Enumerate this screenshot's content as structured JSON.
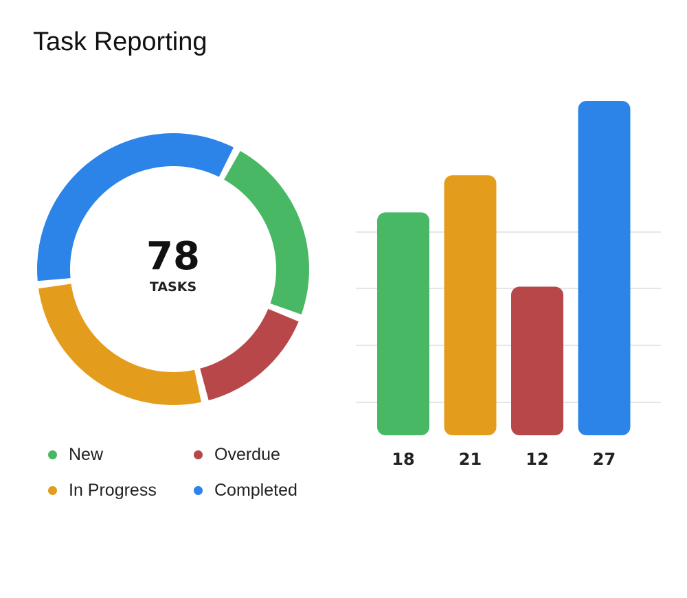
{
  "header": {
    "title": "Task Reporting"
  },
  "donut": {
    "total_value": "78",
    "total_label": "TASKS"
  },
  "colors": {
    "new": "#48b864",
    "in_progress": "#e49c1c",
    "overdue": "#b8474a",
    "completed": "#2d84e8",
    "grid": "#e6e6e6"
  },
  "chart_data": [
    {
      "type": "pie",
      "variant": "donut",
      "center_text": [
        "78",
        "TASKS"
      ],
      "slices": [
        {
          "label": "New",
          "value": 18,
          "color": "#48b864"
        },
        {
          "label": "Overdue",
          "value": 12,
          "color": "#b8474a"
        },
        {
          "label": "In Progress",
          "value": 21,
          "color": "#e49c1c"
        },
        {
          "label": "Completed",
          "value": 27,
          "color": "#2d84e8"
        }
      ],
      "legend": "bottom"
    },
    {
      "type": "bar",
      "categories": [
        "New",
        "In Progress",
        "Overdue",
        "Completed"
      ],
      "values": [
        18,
        21,
        12,
        27
      ],
      "value_labels": [
        "18",
        "21",
        "12",
        "27"
      ],
      "colors": [
        "#48b864",
        "#e49c1c",
        "#b8474a",
        "#2d84e8"
      ],
      "grid": true,
      "ylim": [
        0,
        27
      ]
    }
  ],
  "legend": {
    "items": [
      {
        "label": "New",
        "color": "#48b864"
      },
      {
        "label": "Overdue",
        "color": "#b8474a"
      },
      {
        "label": "In Progress",
        "color": "#e49c1c"
      },
      {
        "label": "Completed",
        "color": "#2d84e8"
      }
    ]
  }
}
